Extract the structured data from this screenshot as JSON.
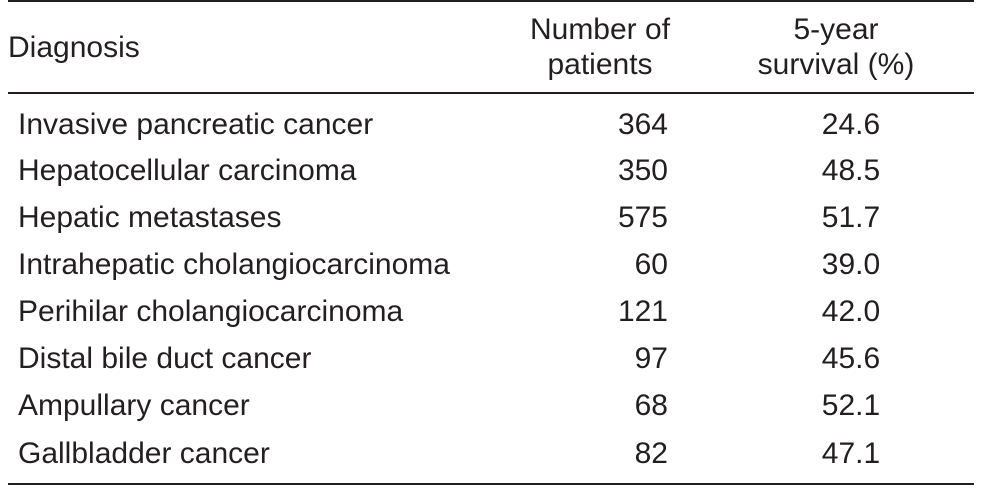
{
  "table": {
    "headers": {
      "diagnosis": "Diagnosis",
      "patients_line1": "Number of",
      "patients_line2": "patients",
      "survival_line1": "5-year",
      "survival_line2": "survival (%)"
    },
    "rows": [
      {
        "diagnosis": "Invasive pancreatic cancer",
        "patients": "364",
        "survival": "24.6"
      },
      {
        "diagnosis": "Hepatocellular carcinoma",
        "patients": "350",
        "survival": "48.5"
      },
      {
        "diagnosis": "Hepatic metastases",
        "patients": "575",
        "survival": "51.7"
      },
      {
        "diagnosis": "Intrahepatic cholangiocarcinoma",
        "patients": "60",
        "survival": "39.0"
      },
      {
        "diagnosis": "Perihilar cholangiocarcinoma",
        "patients": "121",
        "survival": "42.0"
      },
      {
        "diagnosis": "Distal bile duct cancer",
        "patients": "97",
        "survival": "45.6"
      },
      {
        "diagnosis": "Ampullary cancer",
        "patients": "68",
        "survival": "52.1"
      },
      {
        "diagnosis": "Gallbladder cancer",
        "patients": "82",
        "survival": "47.1"
      }
    ]
  },
  "chart_data": {
    "type": "table",
    "columns": [
      "Diagnosis",
      "Number of patients",
      "5-year survival (%)"
    ],
    "rows": [
      [
        "Invasive pancreatic cancer",
        364,
        24.6
      ],
      [
        "Hepatocellular carcinoma",
        350,
        48.5
      ],
      [
        "Hepatic metastases",
        575,
        51.7
      ],
      [
        "Intrahepatic cholangiocarcinoma",
        60,
        39.0
      ],
      [
        "Perihilar cholangiocarcinoma",
        121,
        42.0
      ],
      [
        "Distal bile duct cancer",
        97,
        45.6
      ],
      [
        "Ampullary cancer",
        68,
        52.1
      ],
      [
        "Gallbladder cancer",
        82,
        47.1
      ]
    ]
  }
}
